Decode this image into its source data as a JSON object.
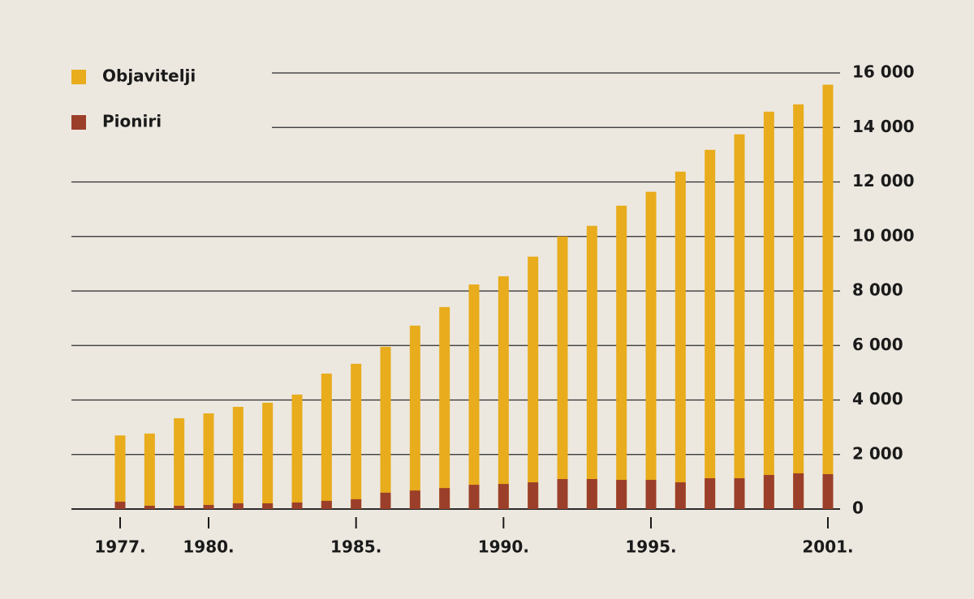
{
  "chart_data": {
    "type": "bar",
    "categories": [
      "1977.",
      null,
      null,
      "1980.",
      null,
      null,
      null,
      null,
      "1985.",
      null,
      null,
      null,
      null,
      "1990.",
      null,
      null,
      null,
      null,
      "1995.",
      null,
      null,
      null,
      null,
      null,
      "2001."
    ],
    "series": [
      {
        "name": "Objavitelji",
        "color": "#e8ac1c",
        "values": [
          2700,
          2770,
          3330,
          3510,
          3750,
          3900,
          4200,
          4970,
          5330,
          5950,
          6730,
          7410,
          8240,
          8540,
          9260,
          10000,
          10390,
          11130,
          11640,
          12380,
          13180,
          13750,
          14580,
          14850,
          15570
        ]
      },
      {
        "name": "Pioniri",
        "color": "#9c3f2a",
        "values": [
          270,
          120,
          120,
          150,
          210,
          210,
          240,
          300,
          360,
          600,
          680,
          770,
          890,
          920,
          980,
          1100,
          1100,
          1070,
          1070,
          980,
          1130,
          1130,
          1250,
          1310,
          1280
        ]
      }
    ],
    "ylim": [
      0,
      16000
    ],
    "yticks": [
      0,
      {
        "value": 2000,
        "label": "2 000"
      },
      {
        "value": 4000,
        "label": "4 000"
      },
      {
        "value": 6000,
        "label": "6 000"
      },
      {
        "value": 8000,
        "label": "8 000"
      },
      {
        "value": 10000,
        "label": "10 000"
      },
      {
        "value": 12000,
        "label": "12 000"
      },
      {
        "value": 14000,
        "label": "14 000"
      },
      {
        "value": 16000,
        "label": "16 000"
      }
    ],
    "grid": true,
    "legend": "top-left"
  }
}
